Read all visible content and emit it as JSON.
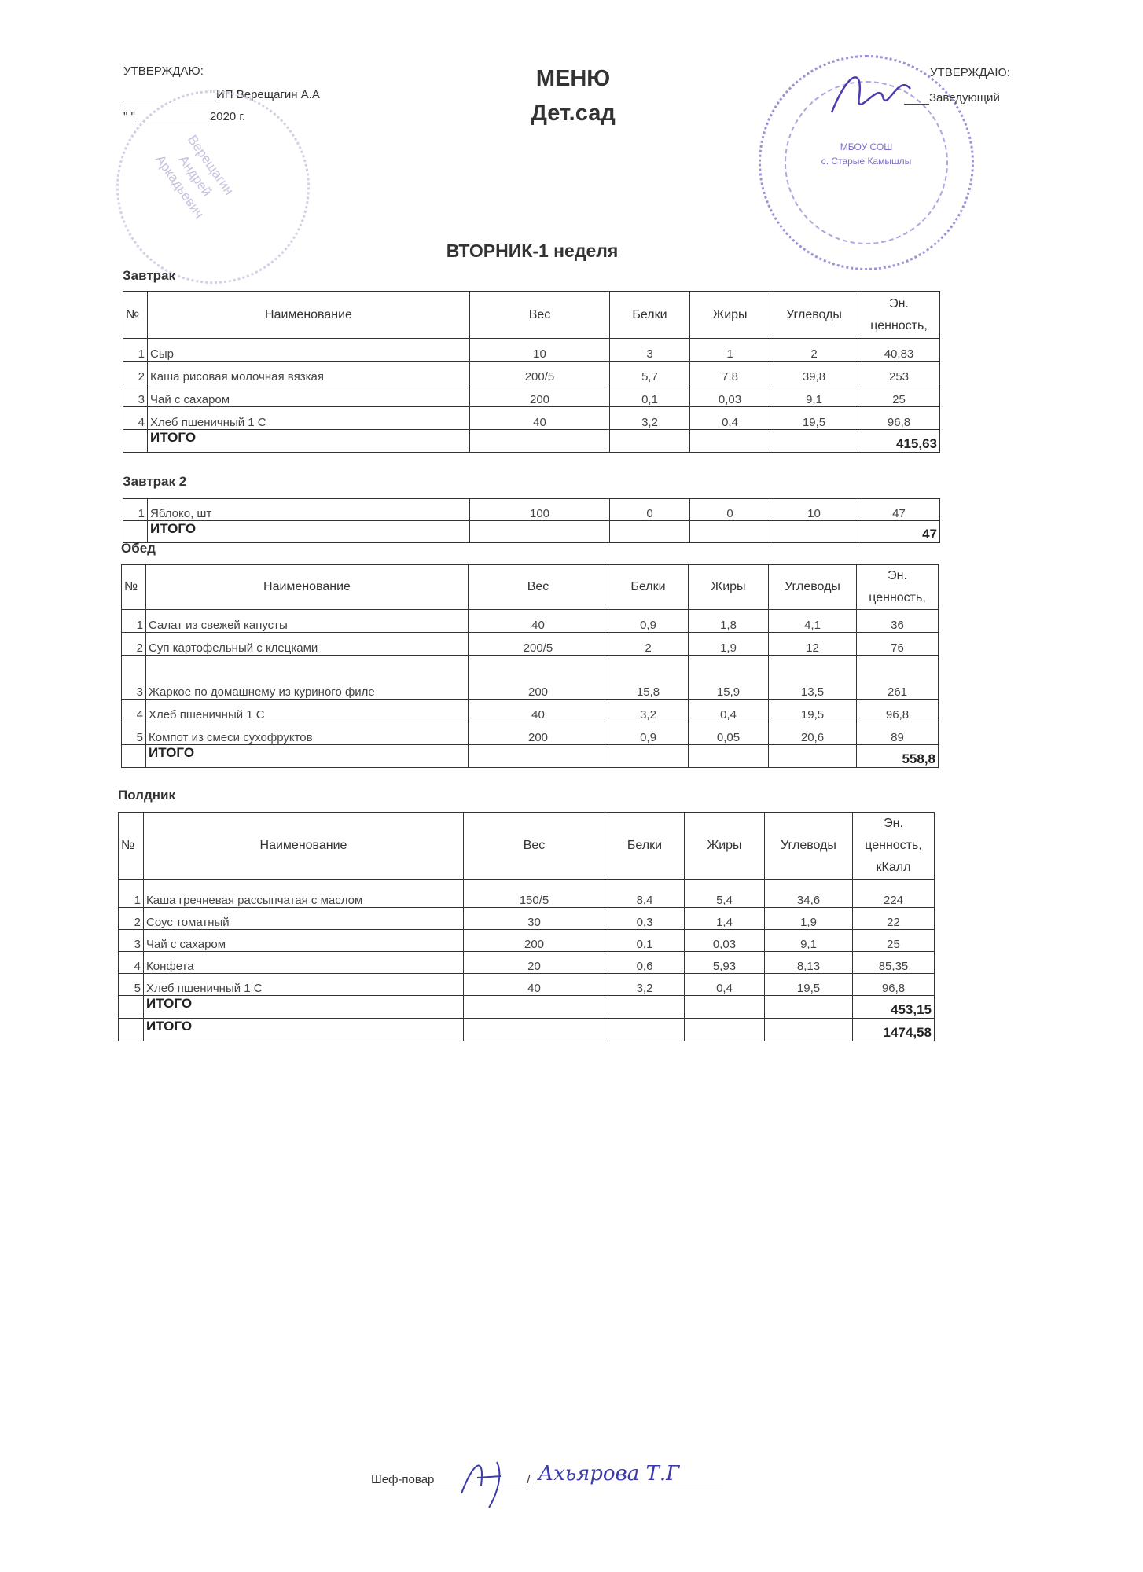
{
  "header": {
    "left_approve": "УТВЕРЖДАЮ:",
    "left_person": "ИП Верещагин А.А",
    "left_date_year": "2020 г.",
    "left_date_quote": "\"      \"",
    "title": "МЕНЮ",
    "subtitle": "Дет.сад",
    "right_approve": "УТВЕРЖДАЮ:",
    "right_person": "Заведующий"
  },
  "stamps": {
    "left": {
      "text": [
        "Верещагин",
        "Андрей",
        "Аркадьевич"
      ],
      "color": "#b9b3d6"
    },
    "right": {
      "text": [
        "МБОУ СОШ",
        "с. Старые Камышлы"
      ],
      "color": "#7a6cc8"
    }
  },
  "day_title": "ВТОРНИК-1 неделя",
  "columns": [
    "№",
    "Наименование",
    "Вес",
    "Белки",
    "Жиры",
    "Углеводы",
    "Эн. ценность,"
  ],
  "columns_kcal": [
    "№",
    "Наименование",
    "Вес",
    "Белки",
    "Жиры",
    "Углеводы",
    "Эн. ценность, кКалл"
  ],
  "sections": [
    {
      "label": "Завтрак",
      "rows": [
        [
          "1",
          "Сыр",
          "10",
          "3",
          "1",
          "2",
          "40,83"
        ],
        [
          "2",
          "Каша рисовая молочная вязкая",
          "200/5",
          "5,7",
          "7,8",
          "39,8",
          "253"
        ],
        [
          "3",
          "Чай с сахаром",
          "200",
          "0,1",
          "0,03",
          "9,1",
          "25"
        ],
        [
          "4",
          "Хлеб пшеничный 1 С",
          "40",
          "3,2",
          "0,4",
          "19,5",
          "96,8"
        ]
      ],
      "totals": [
        {
          "label": "ИТОГО",
          "value": "415,63"
        }
      ]
    },
    {
      "label": "Завтрак 2",
      "rows": [
        [
          "1",
          "Яблоко, шт",
          "100",
          "0",
          "0",
          "10",
          "47"
        ]
      ],
      "totals": [
        {
          "label": "ИТОГО",
          "value": "47"
        }
      ]
    },
    {
      "label": "Обед",
      "rows": [
        [
          "1",
          "Салат из свежей капусты",
          "40",
          "0,9",
          "1,8",
          "4,1",
          "36"
        ],
        [
          "2",
          "Суп картофельный  с клецками",
          "200/5",
          "2",
          "1,9",
          "12",
          "76"
        ],
        [
          "3",
          "Жаркое по домашнему из куриного филе",
          "200",
          "15,8",
          "15,9",
          "13,5",
          "261"
        ],
        [
          "4",
          "Хлеб пшеничный 1 С",
          "40",
          "3,2",
          "0,4",
          "19,5",
          "96,8"
        ],
        [
          "5",
          "Компот из смеси сухофруктов",
          "200",
          "0,9",
          "0,05",
          "20,6",
          "89"
        ]
      ],
      "totals": [
        {
          "label": "ИТОГО",
          "value": "558,8"
        }
      ]
    },
    {
      "label": "Полдник",
      "rows": [
        [
          "1",
          "Каша гречневая рассыпчатая с маслом",
          "150/5",
          "8,4",
          "5,4",
          "34,6",
          "224"
        ],
        [
          "2",
          "Соус томатный",
          "30",
          "0,3",
          "1,4",
          "1,9",
          "22"
        ],
        [
          "3",
          "Чай с сахаром",
          "200",
          "0,1",
          "0,03",
          "9,1",
          "25"
        ],
        [
          "4",
          "Конфета",
          "20",
          "0,6",
          "5,93",
          "8,13",
          "85,35"
        ],
        [
          "5",
          "Хлеб пшеничный 1 С",
          "40",
          "3,2",
          "0,4",
          "19,5",
          "96,8"
        ]
      ],
      "totals": [
        {
          "label": "ИТОГО",
          "value": "453,15"
        },
        {
          "label": "ИТОГО",
          "value": "1474,58"
        }
      ]
    }
  ],
  "footer": {
    "chef_label": "Шеф-повар",
    "chef_signature": "Ахьярова Т.Г"
  }
}
